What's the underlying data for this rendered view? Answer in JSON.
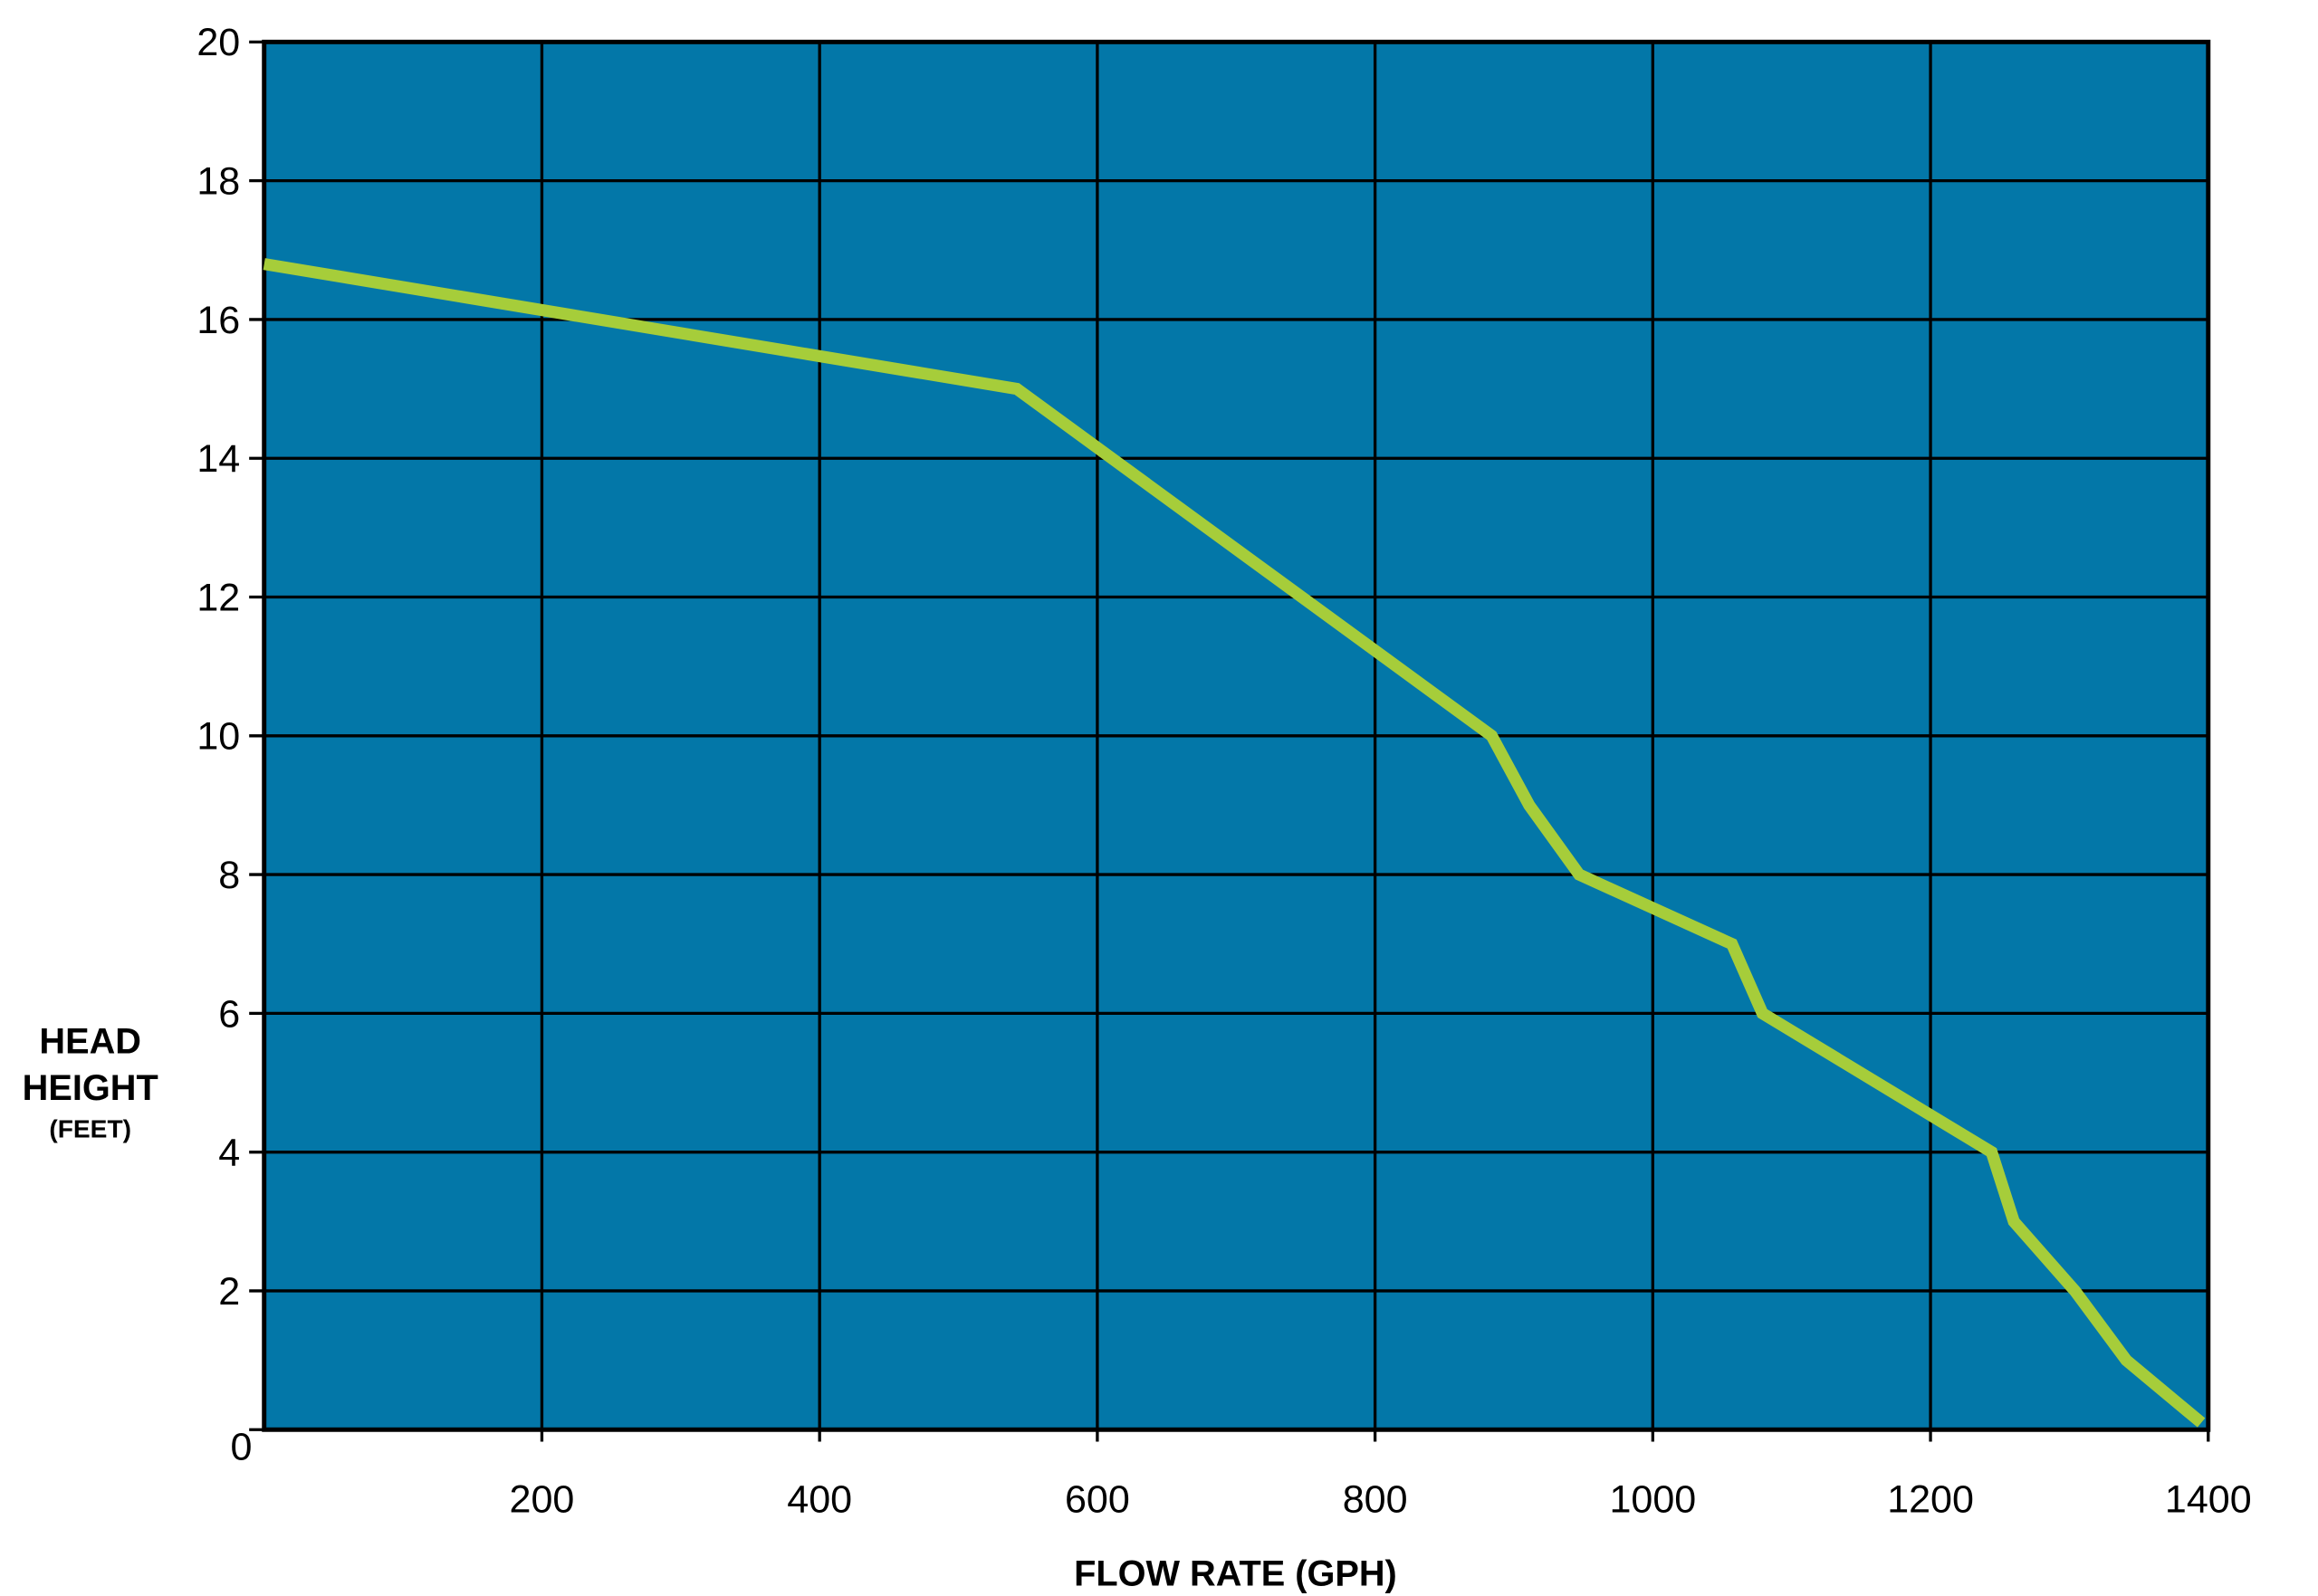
{
  "chart_data": {
    "type": "line",
    "x_label": "FLOW RATE (GPH)",
    "y_label_lines": [
      "HEAD",
      "HEIGHT"
    ],
    "y_label_unit": "(FEET)",
    "x": [
      0,
      542,
      884,
      911,
      947,
      1057,
      1079,
      1244,
      1260,
      1304,
      1341,
      1395
    ],
    "series": [
      {
        "name": "Head height",
        "color": "#a6cd3a",
        "values": [
          16.8,
          15,
          10,
          9,
          8,
          7,
          6,
          4,
          3,
          2,
          1,
          0.1
        ]
      }
    ],
    "xlim": [
      0,
      1400
    ],
    "xticks": [
      200,
      400,
      600,
      800,
      1000,
      1200,
      1400
    ],
    "ylim": [
      0,
      20
    ],
    "yticks": [
      0,
      2,
      4,
      6,
      8,
      10,
      12,
      14,
      16,
      18,
      20
    ],
    "grid": true,
    "plot_background": "#0377a8",
    "grid_color": "#000000"
  }
}
